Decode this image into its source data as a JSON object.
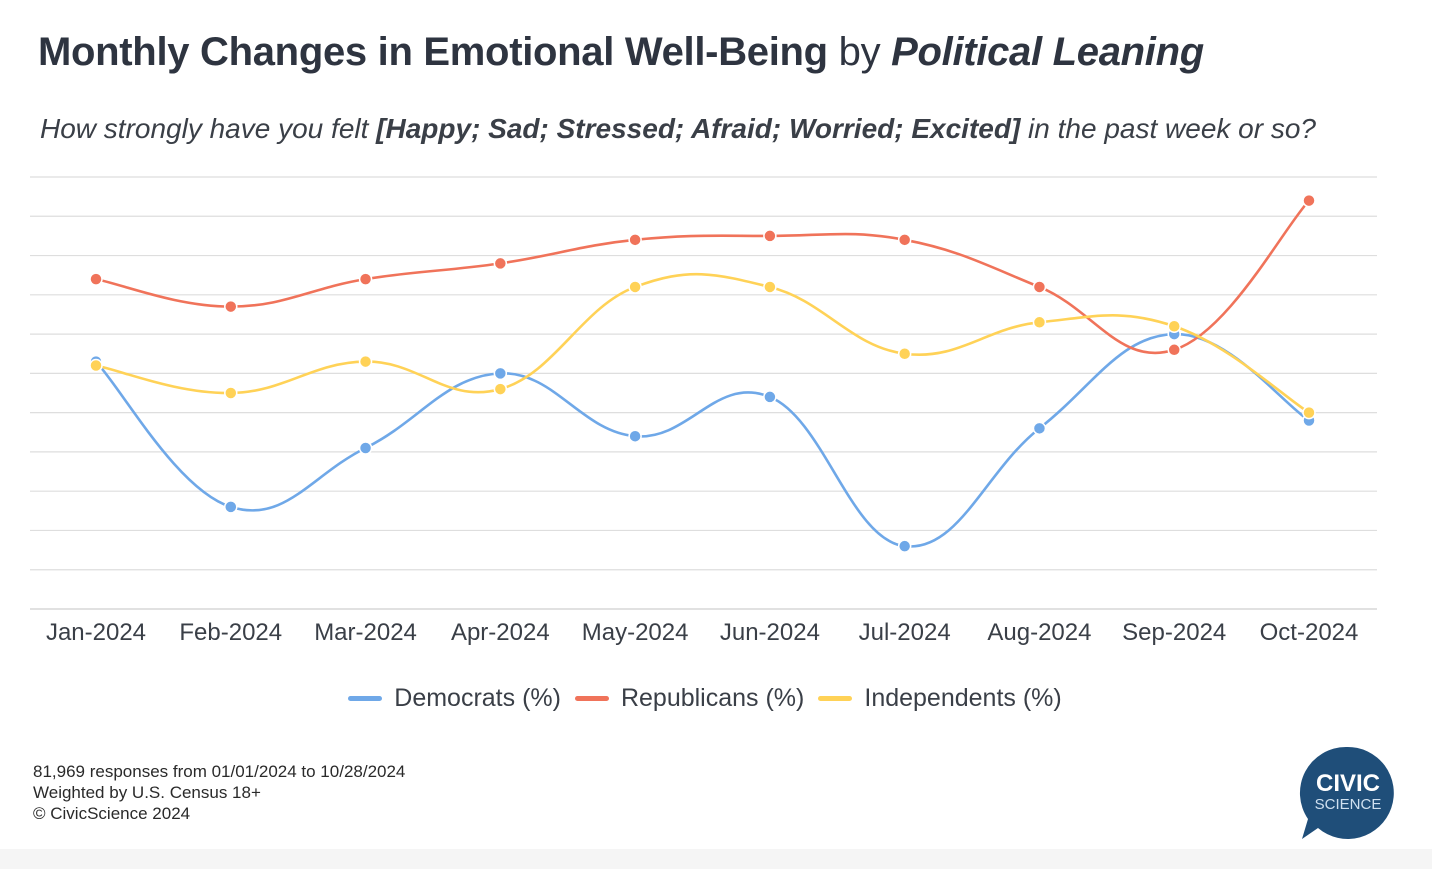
{
  "header": {
    "title_bold": "Monthly Changes in Emotional Well-Being",
    "title_by": "by",
    "title_italic": "Political Leaning",
    "subtitle_pre": "How strongly have you felt ",
    "subtitle_emph": "[Happy; Sad; Stressed; Afraid; Worried; Excited]",
    "subtitle_post": " in the past week or so?"
  },
  "chart_data": {
    "type": "line",
    "title": "Monthly Changes in Emotional Well-Being by Political Leaning",
    "subtitle": "How strongly have you felt [Happy; Sad; Stressed; Afraid; Worried; Excited] in the past week or so?",
    "xlabel": "",
    "ylabel": "",
    "categories": [
      "Jan-2024",
      "Feb-2024",
      "Mar-2024",
      "Apr-2024",
      "May-2024",
      "Jun-2024",
      "Jul-2024",
      "Aug-2024",
      "Sep-2024",
      "Oct-2024"
    ],
    "ylim": [
      0,
      11
    ],
    "y_tick_labels_shown": false,
    "grid": "horizontal",
    "legend_position": "bottom",
    "series": [
      {
        "name": "Democrats (%)",
        "color": "#6fa8e8",
        "values": [
          6.3,
          2.6,
          4.1,
          6.0,
          4.4,
          5.4,
          1.6,
          4.6,
          7.0,
          4.8
        ]
      },
      {
        "name": "Republicans (%)",
        "color": "#f0735a",
        "values": [
          8.4,
          7.7,
          8.4,
          8.8,
          9.4,
          9.5,
          9.4,
          8.2,
          6.6,
          10.4
        ]
      },
      {
        "name": "Independents (%)",
        "color": "#ffd257",
        "values": [
          6.2,
          5.5,
          6.3,
          5.6,
          8.2,
          8.2,
          6.5,
          7.3,
          7.2,
          5.0
        ]
      }
    ]
  },
  "legend": {
    "items": [
      {
        "label": "Democrats (%)",
        "color": "#6fa8e8"
      },
      {
        "label": "Republicans (%)",
        "color": "#f0735a"
      },
      {
        "label": "Independents (%)",
        "color": "#ffd257"
      }
    ]
  },
  "footer": {
    "line1": "81,969 responses from 01/01/2024 to 10/28/2024",
    "line2": "Weighted by U.S. Census 18+",
    "line3": "© CivicScience 2024"
  },
  "logo": {
    "line1": "CIVIC",
    "line2": "SCIENCE",
    "color": "#1f4e79"
  }
}
